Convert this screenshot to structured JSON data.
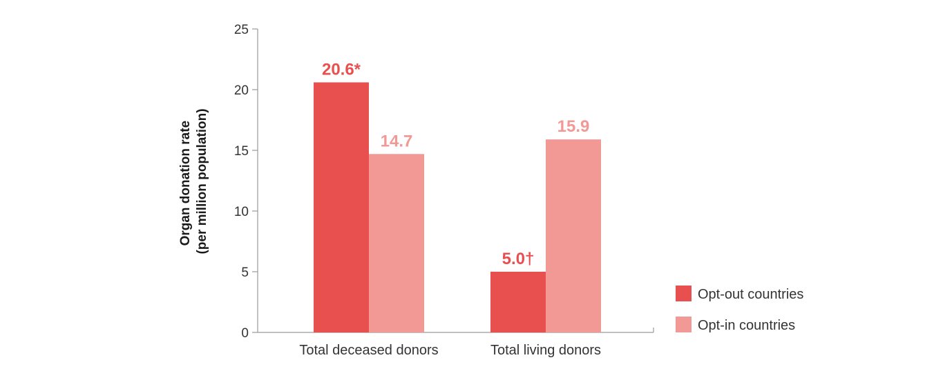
{
  "chart_data": {
    "type": "bar",
    "title": "",
    "xlabel": "",
    "ylabel": [
      "Organ donation rate",
      "(per million population)"
    ],
    "ylim": [
      0,
      25
    ],
    "yticks": [
      0,
      5,
      10,
      15,
      20,
      25
    ],
    "categories": [
      "Total deceased donors",
      "Total living donors"
    ],
    "series": [
      {
        "name": "Opt-out countries",
        "color": "#e8504f",
        "values": [
          20.6,
          5.0
        ],
        "labels": [
          "20.6*",
          "5.0†"
        ]
      },
      {
        "name": "Opt-in countries",
        "color": "#f29996",
        "values": [
          14.7,
          15.9
        ],
        "labels": [
          "14.7",
          "15.9"
        ]
      }
    ],
    "grid": false,
    "legend_position": "bottom-right"
  }
}
